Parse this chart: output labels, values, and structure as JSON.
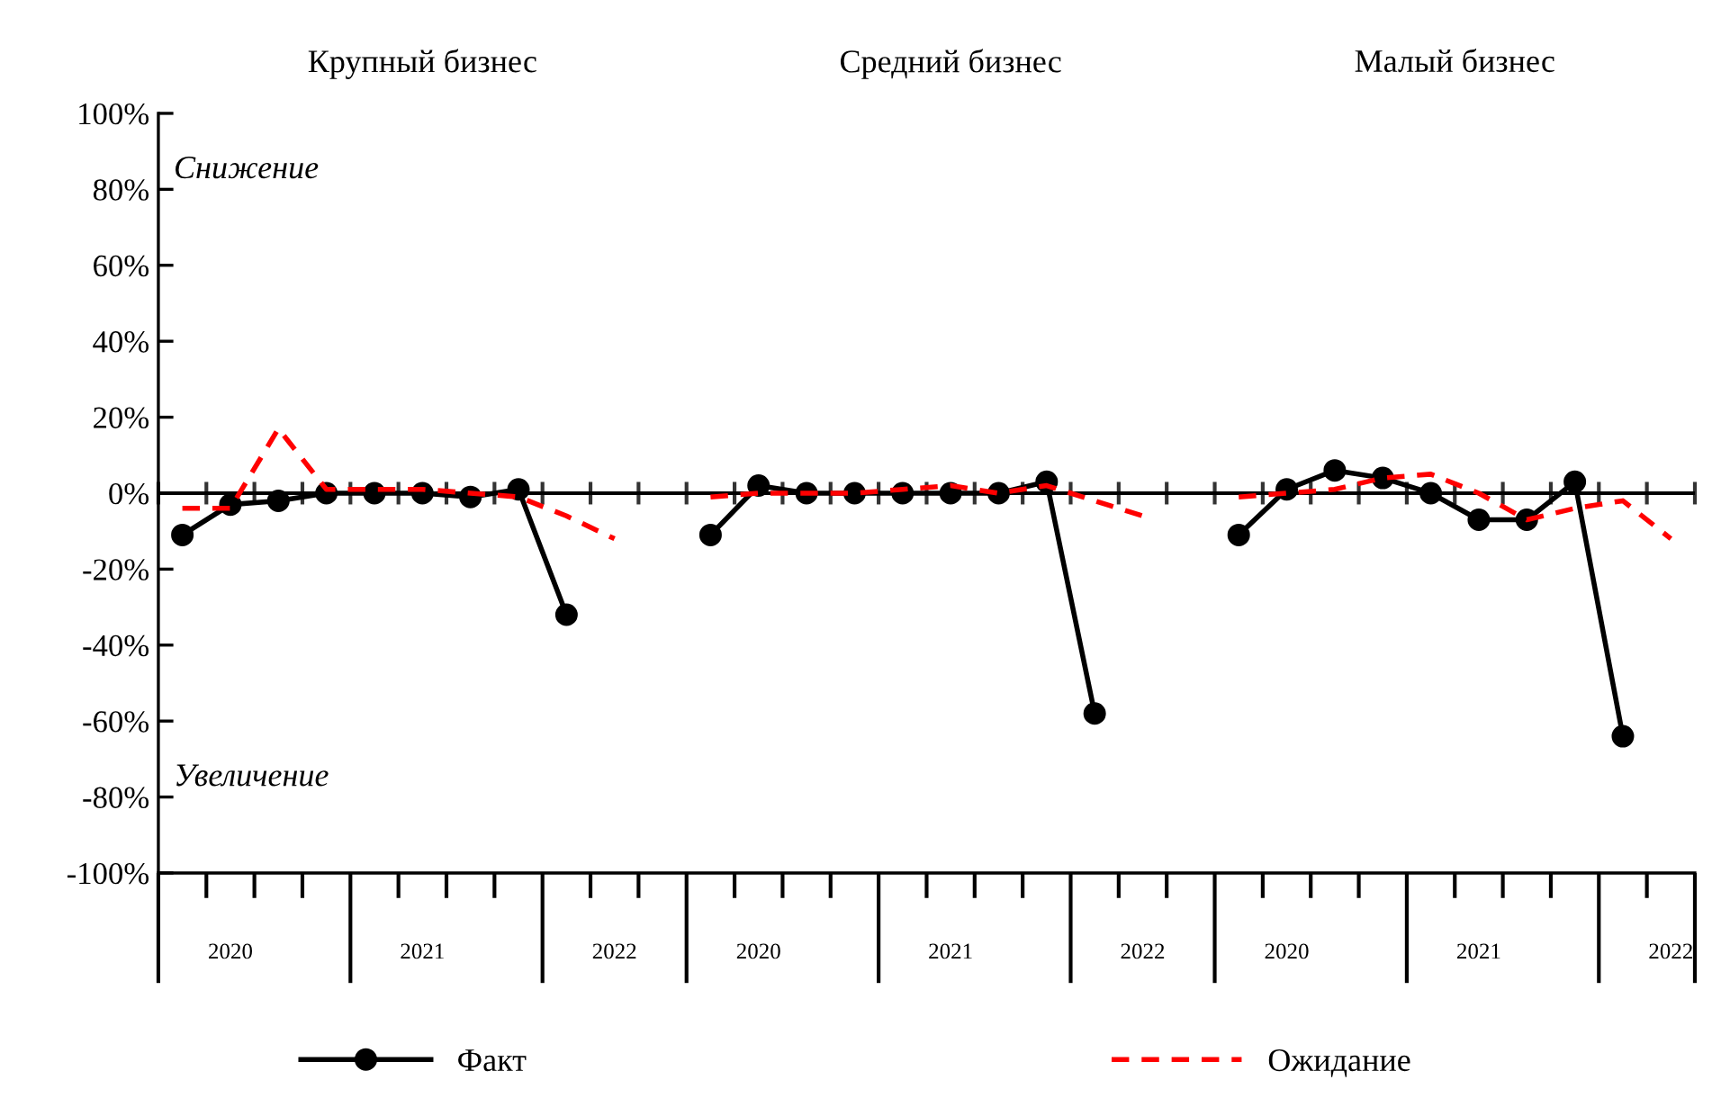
{
  "chart_data": {
    "type": "line",
    "categories": [
      null,
      "2020",
      null,
      null,
      null,
      "2021",
      null,
      null,
      null,
      "2022",
      null,
      null,
      "2020",
      null,
      null,
      null,
      "2021",
      null,
      null,
      null,
      "2022",
      null,
      null,
      "2020",
      null,
      null,
      null,
      "2021",
      null,
      null,
      null,
      "2022"
    ],
    "series": [
      {
        "name": "Факт",
        "color": "#000000",
        "marker": "circle",
        "line_style": "solid",
        "values": [
          -11,
          -3,
          -2,
          0,
          0,
          0,
          -1,
          1,
          -32,
          null,
          null,
          -11,
          2,
          0,
          0,
          0,
          0,
          0,
          3,
          -58,
          null,
          null,
          -11,
          1,
          6,
          4,
          0,
          -7,
          -7,
          3,
          -64,
          null
        ]
      },
      {
        "name": "Ожидание",
        "color": "#ff0000",
        "marker": "none",
        "line_style": "dashed",
        "values": [
          -4,
          -4,
          17,
          1,
          1,
          1,
          0,
          -1,
          -6,
          -12,
          null,
          -1,
          0,
          0,
          0,
          1,
          2,
          0,
          2,
          -2,
          -6,
          null,
          -1,
          0,
          1,
          4,
          5,
          0,
          -7,
          -4,
          -2,
          -12
        ]
      }
    ],
    "ylim": [
      -100,
      100
    ],
    "yticks": [
      {
        "value": -100,
        "label": "-100%"
      },
      {
        "value": -80,
        "label": "-80%"
      },
      {
        "value": -60,
        "label": "-60%"
      },
      {
        "value": -40,
        "label": "-40%"
      },
      {
        "value": -20,
        "label": "-20%"
      },
      {
        "value": 0,
        "label": "0%"
      },
      {
        "value": 20,
        "label": "20%"
      },
      {
        "value": 40,
        "label": "40%"
      },
      {
        "value": 60,
        "label": "60%"
      },
      {
        "value": 80,
        "label": "80%"
      },
      {
        "value": 100,
        "label": "100%"
      }
    ],
    "ref_lines": [
      {
        "axis": "y",
        "value": 0,
        "color": "#000000"
      }
    ],
    "annotations": [
      "Крупный бизнес",
      "Средний бизнес",
      "Малый бизнес",
      "Снижение",
      "Увеличение"
    ],
    "legend": "bottom"
  }
}
